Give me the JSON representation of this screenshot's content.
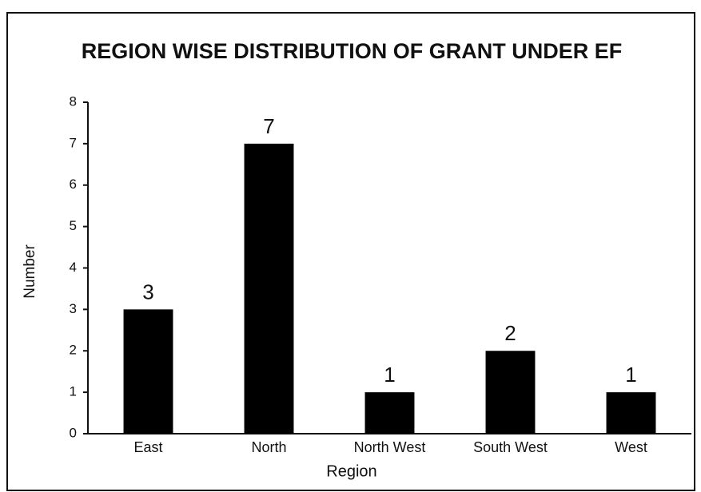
{
  "chart_data": {
    "type": "bar",
    "title": "REGION WISE DISTRIBUTION OF GRANT UNDER EF",
    "x_label": "Region",
    "y_label": "Number",
    "categories": [
      "East",
      "North",
      "North West",
      "South West",
      "West"
    ],
    "values": [
      3,
      7,
      1,
      2,
      1
    ],
    "color": "#000000",
    "ylim": [
      0,
      8
    ],
    "yticks": [
      0,
      1,
      2,
      3,
      4,
      5,
      6,
      7,
      8
    ],
    "grid": false
  }
}
